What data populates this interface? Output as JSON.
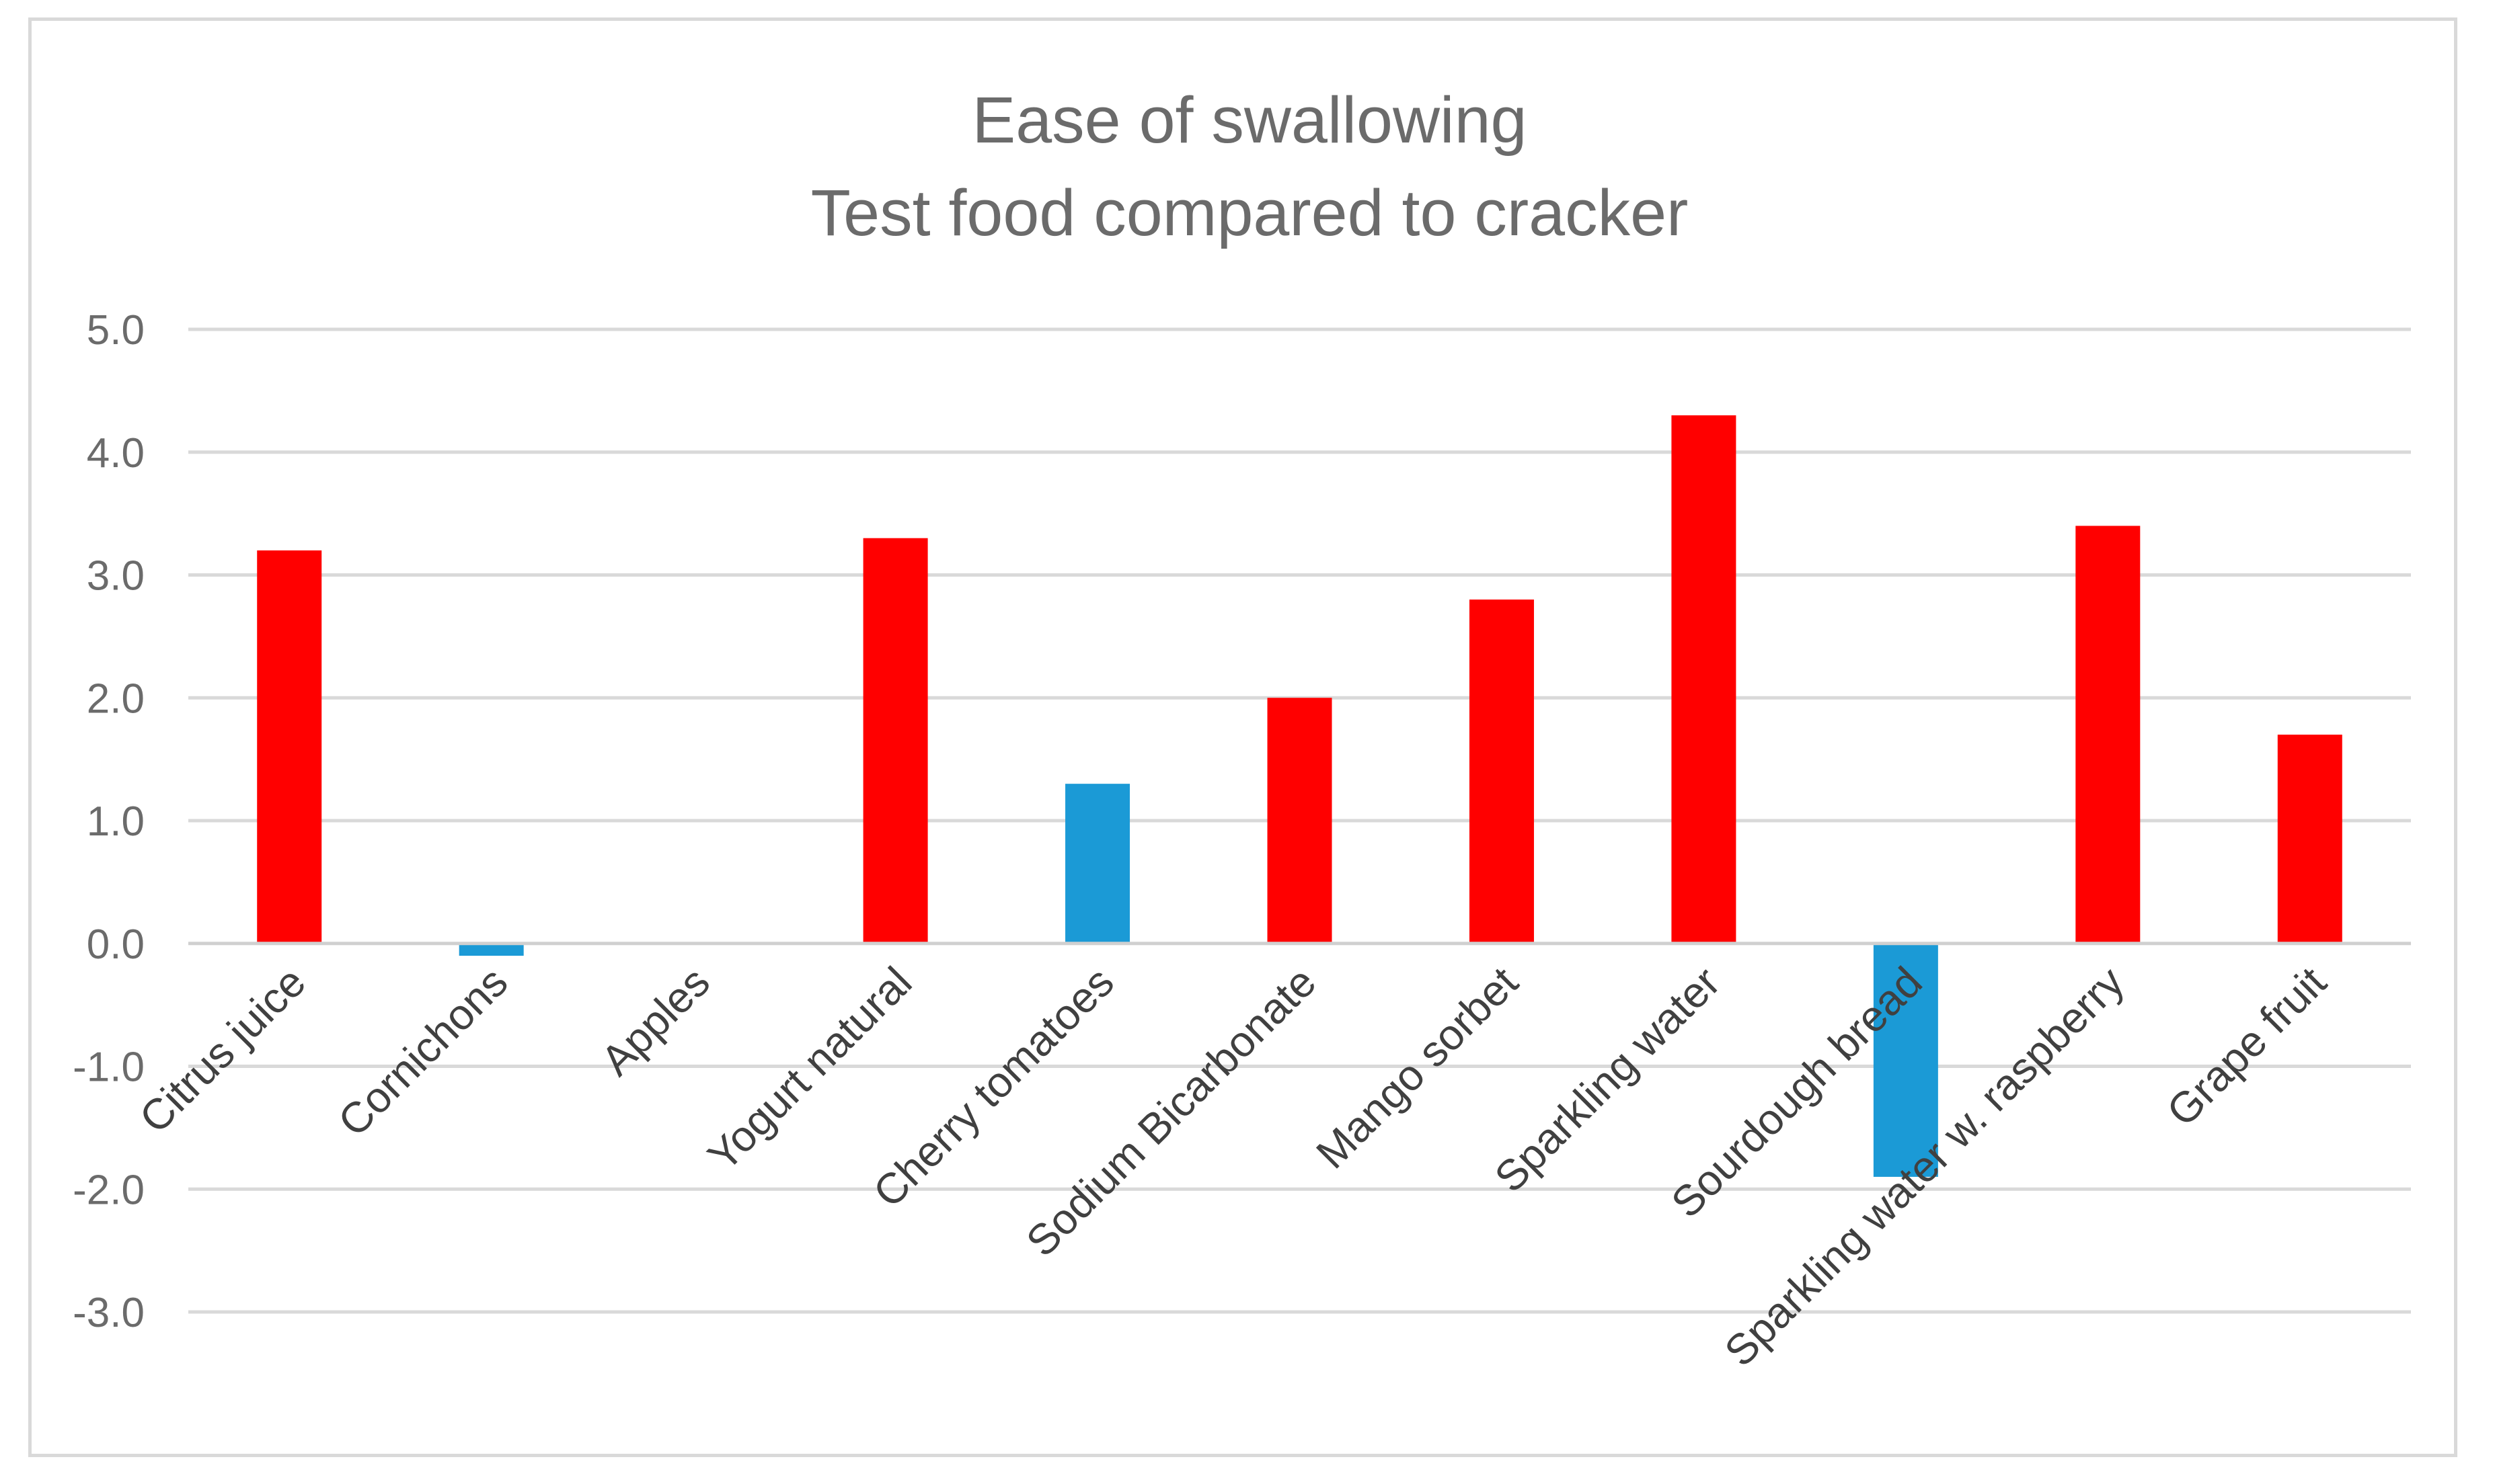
{
  "chart_data": {
    "type": "bar",
    "title_lines": [
      "Ease of swallowing",
      "Test food compared to cracker"
    ],
    "categories": [
      "Citrus juice",
      "Cornichons",
      "Apples",
      "Yogurt natural",
      "Cherry tomatoes",
      "Sodium Bicarbonate",
      "Mango sorbet",
      "Sparkling water",
      "Sourdough bread",
      "Sparkling water w. raspberry",
      "Grape fruit"
    ],
    "values": [
      3.2,
      -0.1,
      0.0,
      3.3,
      1.3,
      2.0,
      2.8,
      4.3,
      -1.9,
      3.4,
      1.7
    ],
    "bar_colors": [
      "#ff0000",
      "#1b9ad6",
      "#ff0000",
      "#ff0000",
      "#1b9ad6",
      "#ff0000",
      "#ff0000",
      "#ff0000",
      "#1b9ad6",
      "#ff0000",
      "#ff0000"
    ],
    "y_ticks": [
      "5.0",
      "4.0",
      "3.0",
      "2.0",
      "1.0",
      "0.0",
      "-1.0",
      "-2.0",
      "-3.0"
    ],
    "ylim": [
      -3,
      5
    ],
    "xlabel": "",
    "ylabel": "",
    "grid": true,
    "legend": "none"
  }
}
